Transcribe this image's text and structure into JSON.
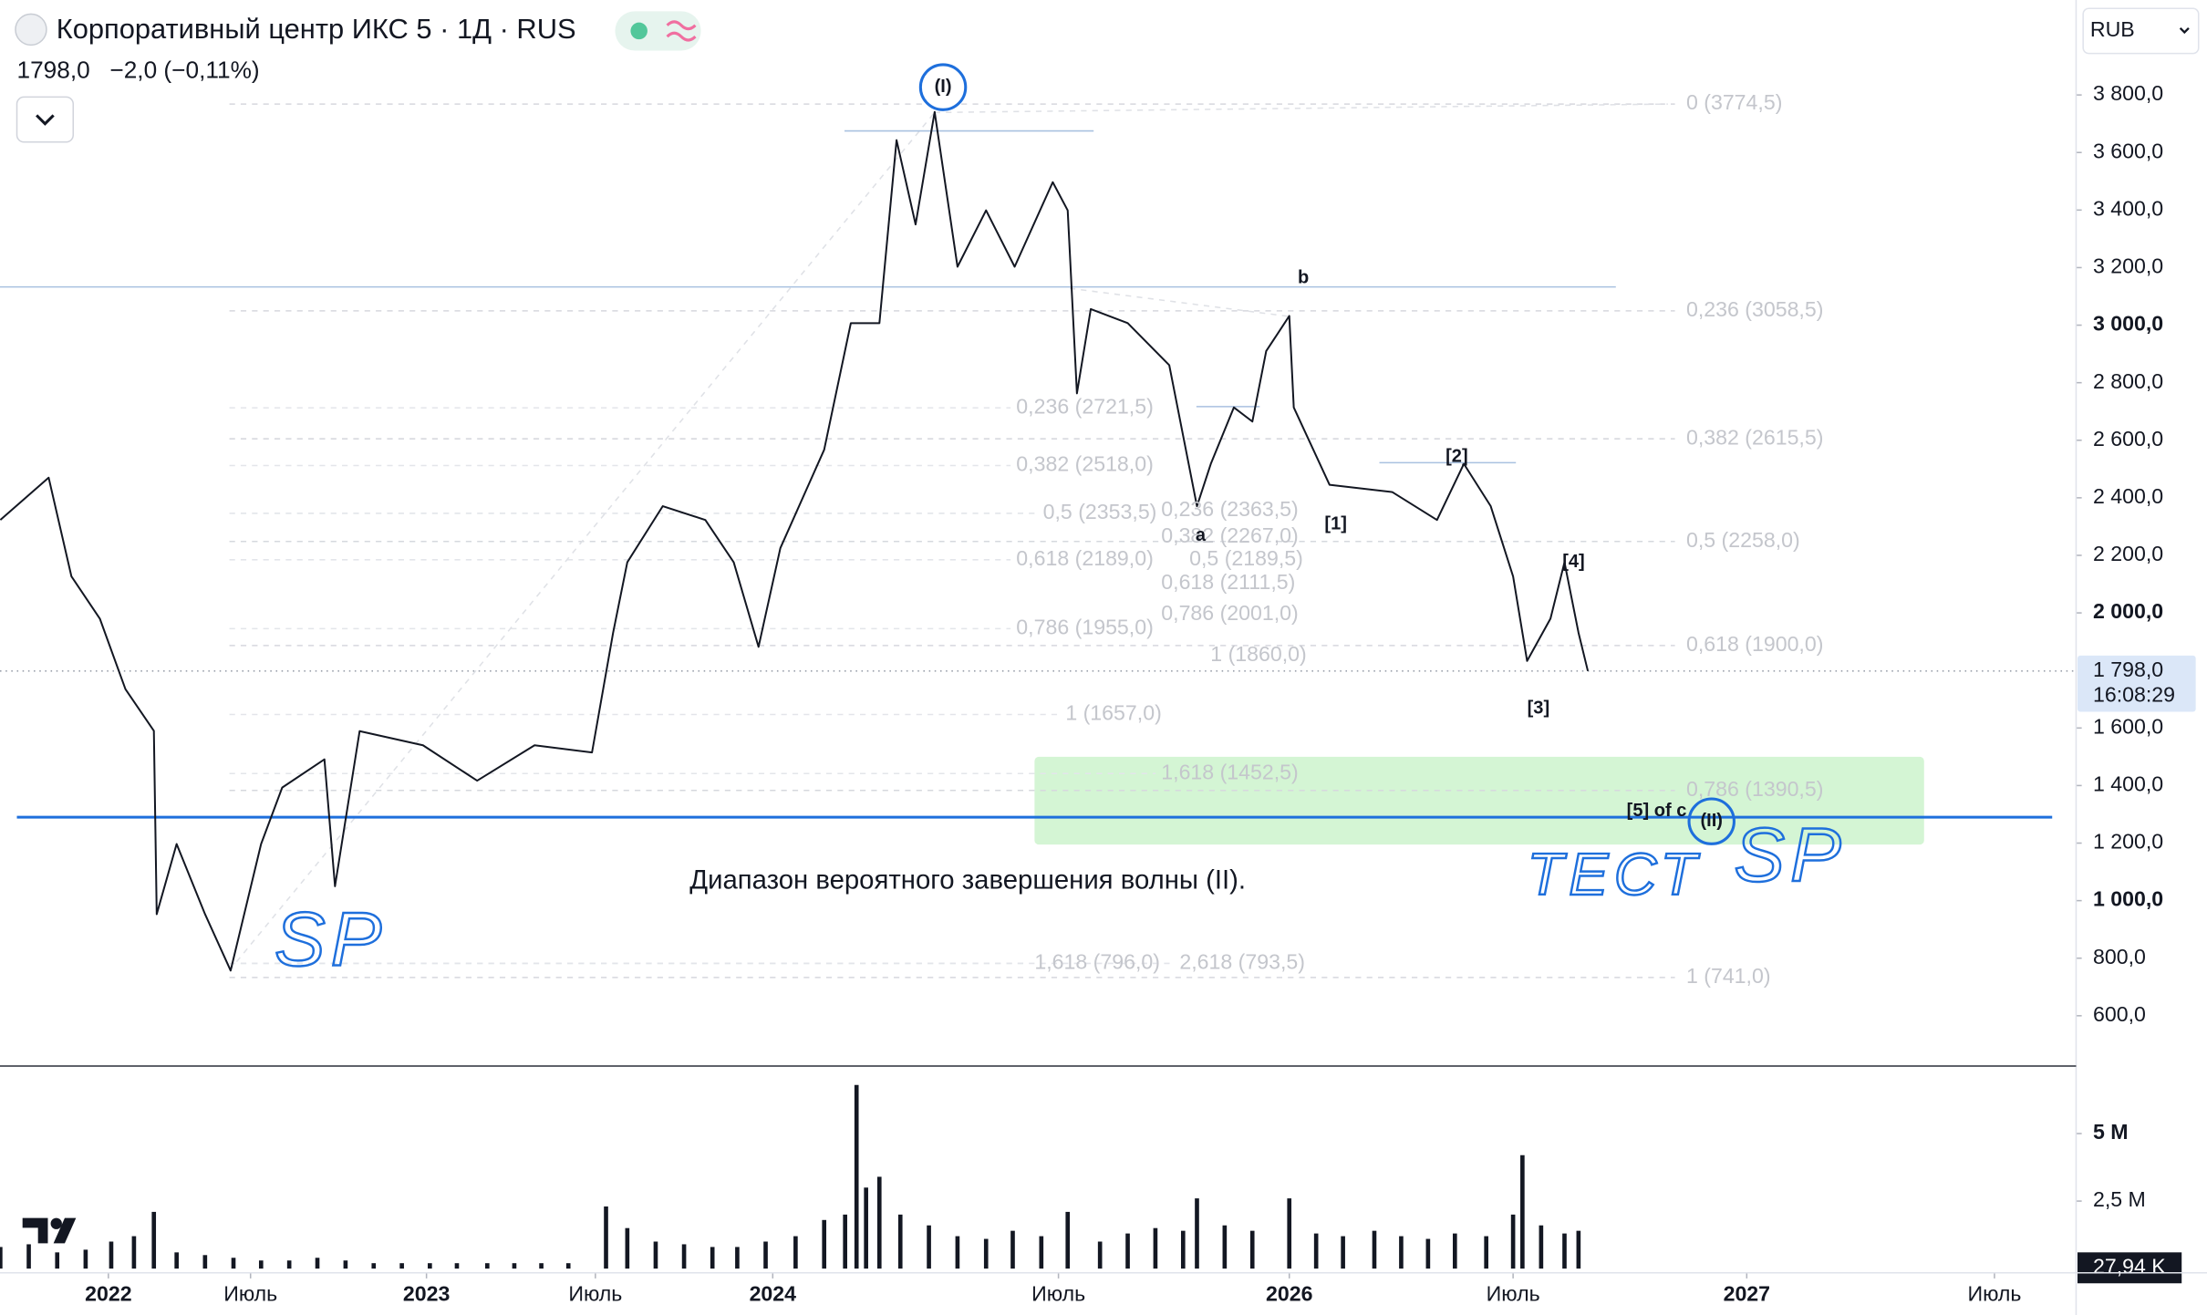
{
  "chart_data": {
    "type": "line",
    "title": "Корпоративный центр ИКС 5 · 1Д · RUS",
    "quote": "1798,0",
    "change": "−2,0 (−0,11%)",
    "currency": "RUB",
    "color": "#131722",
    "x": [
      2021.62,
      2021.79,
      2021.87,
      2021.97,
      2022.06,
      2022.16,
      2022.17,
      2022.24,
      2022.34,
      2022.43,
      2022.53,
      2022.59,
      2022.71,
      2022.74,
      2022.81,
      2022.99,
      2023.15,
      2023.32,
      2023.49,
      2023.55,
      2023.59,
      2023.69,
      2023.81,
      2023.89,
      2023.96,
      2024.04,
      2024.27,
      2024.41,
      2024.56,
      2024.65,
      2024.75,
      2024.85,
      2024.97,
      2025.12,
      2025.27,
      2025.47,
      2025.52,
      2025.54,
      2025.57,
      2025.65,
      2025.74,
      2025.8,
      2025.83,
      2025.88,
      2025.92,
      2025.95,
      2026.0,
      2026.01,
      2026.09,
      2026.23,
      2026.33,
      2026.39,
      2026.45,
      2026.5,
      2026.53,
      2026.58,
      2026.61,
      2026.64,
      2026.66
    ],
    "values": [
      2323,
      2470,
      2127,
      1980,
      1735,
      1590,
      953,
      1197,
      953,
      757,
      1197,
      1393,
      1491,
      1050,
      1589,
      1540,
      1417,
      1540,
      1515,
      1931,
      2176,
      2371,
      2323,
      2176,
      1882,
      2225,
      2567,
      3007,
      3007,
      3643,
      3350,
      3741,
      3203,
      3399,
      3203,
      3497,
      3399,
      2763,
      3056,
      3007,
      2861,
      2371,
      2518,
      2714,
      2665,
      2910,
      3032,
      2714,
      2445,
      2420,
      2323,
      2518,
      2371,
      2127,
      1833,
      1980,
      2176,
      1931,
      1798
    ],
    "xlim": [
      2021.62,
      2027.66
    ],
    "xticks": [
      {
        "value": 2022,
        "label": "2022"
      },
      {
        "value": 2022.5,
        "label": "Июль"
      },
      {
        "value": 2023,
        "label": "2023"
      },
      {
        "value": 2023.5,
        "label": "Июль"
      },
      {
        "value": 2024,
        "label": "2024"
      },
      {
        "value": 2025.5,
        "label": "Июль"
      },
      {
        "value": 2026,
        "label": "2026"
      },
      {
        "value": 2026.5,
        "label": "Июль"
      },
      {
        "value": 2027,
        "label": "2027"
      },
      {
        "value": 2027.5,
        "label": "Июль"
      }
    ],
    "ylim": [
      430,
      4130
    ],
    "yticks": [
      {
        "value": 600,
        "label": "600,0"
      },
      {
        "value": 800,
        "label": "800,0"
      },
      {
        "value": 1000,
        "label": "1 000,0"
      },
      {
        "value": 1200,
        "label": "1 200,0"
      },
      {
        "value": 1400,
        "label": "1 400,0"
      },
      {
        "value": 1600,
        "label": "1 600,0"
      },
      {
        "value": 2000,
        "label": "2 000,0"
      },
      {
        "value": 2200,
        "label": "2 200,0"
      },
      {
        "value": 2400,
        "label": "2 400,0"
      },
      {
        "value": 2600,
        "label": "2 600,0"
      },
      {
        "value": 2800,
        "label": "2 800,0"
      },
      {
        "value": 3000,
        "label": "3 000,0"
      },
      {
        "value": 3200,
        "label": "3 200,0"
      },
      {
        "value": 3400,
        "label": "3 400,0"
      },
      {
        "value": 3600,
        "label": "3 600,0"
      },
      {
        "value": 3800,
        "label": "3 800,0"
      }
    ],
    "last_price": {
      "value": 1798,
      "label": "1 798,0"
    },
    "countdown": "16:08:29",
    "levels": [
      {
        "value": 1290,
        "color": "#1e6fdc"
      },
      {
        "value": 3133,
        "color": "#a9c1e0"
      },
      {
        "value": 3675,
        "color": "#a9c1e0"
      },
      {
        "value": 2522,
        "color": "#a9c1e0"
      },
      {
        "value": 2717,
        "color": "#a9c1e0"
      }
    ],
    "zone": {
      "ylim": [
        1195,
        1500
      ],
      "color": "#c9f2c9",
      "label": "Диапазон вероятного завершения волны (II)."
    },
    "fib_labels": [
      "0 (3774,5)",
      "0,236 (3058,5)",
      "0,382 (2615,5)",
      "0,5 (2258,0)",
      "0,618 (1900,0)",
      "0,786 (1390,5)",
      "1 (741,0)",
      "0,236 (2721,5)",
      "0,382 (2518,0)",
      "0,5 (2353,5)",
      "0,618 (2189,0)",
      "0,786 (1955,0)",
      "1 (1657,0)",
      "1,618 (1452,5)",
      "1,618 (796,0)",
      "2,618 (793,5)",
      "0,236 (2363,5)",
      "0,382 (2267,0)",
      "0,5 (2189,5)",
      "0,618 (2111,5)",
      "0,786 (2001,0)",
      "1 (1860,0)"
    ],
    "wave_labels": [
      "(I)",
      "b",
      "a",
      "[1]",
      "[2]",
      "[3]",
      "[4]",
      "[5] of c",
      "(II)"
    ],
    "handwriting": [
      "SP",
      "ТЕСТ",
      "SP"
    ],
    "volume": {
      "color": "#131722",
      "x": [
        2021.62,
        2021.72,
        2021.82,
        2021.92,
        2022.01,
        2022.09,
        2022.16,
        2022.24,
        2022.34,
        2022.44,
        2022.53,
        2022.61,
        2022.69,
        2022.77,
        2022.85,
        2022.93,
        2023.01,
        2023.09,
        2023.18,
        2023.26,
        2023.34,
        2023.42,
        2023.53,
        2023.59,
        2023.67,
        2023.75,
        2023.83,
        2023.9,
        2023.98,
        2024.12,
        2024.27,
        2024.38,
        2024.44,
        2024.49,
        2024.56,
        2024.67,
        2024.82,
        2024.97,
        2025.12,
        2025.26,
        2025.41,
        2025.52,
        2025.59,
        2025.65,
        2025.71,
        2025.77,
        2025.8,
        2025.86,
        2025.92,
        2026.0,
        2026.06,
        2026.12,
        2026.19,
        2026.25,
        2026.31,
        2026.37,
        2026.44,
        2026.5,
        2026.52,
        2026.56,
        2026.61,
        2026.64
      ],
      "values": [
        0.8,
        0.9,
        0.6,
        0.7,
        1.0,
        1.2,
        2.1,
        0.6,
        0.5,
        0.4,
        0.3,
        0.3,
        0.4,
        0.3,
        0.2,
        0.2,
        0.2,
        0.2,
        0.2,
        0.2,
        0.2,
        0.2,
        2.3,
        1.5,
        1.0,
        0.9,
        0.8,
        0.8,
        1.0,
        1.2,
        1.8,
        2.0,
        6.8,
        3.0,
        3.4,
        2.0,
        1.6,
        1.2,
        1.1,
        1.4,
        1.2,
        2.1,
        1.0,
        1.3,
        1.5,
        1.4,
        2.6,
        1.6,
        1.4,
        2.6,
        1.3,
        1.2,
        1.4,
        1.2,
        1.1,
        1.3,
        1.2,
        2.0,
        4.2,
        1.6,
        1.3,
        1.4
      ],
      "ylim": [
        0,
        7.5
      ],
      "yticks": [
        {
          "value": 2.5,
          "label": "2,5 M"
        },
        {
          "value": 5,
          "label": "5 M"
        }
      ],
      "last": {
        "value": 0.02794,
        "label": "27,94 K"
      }
    }
  }
}
